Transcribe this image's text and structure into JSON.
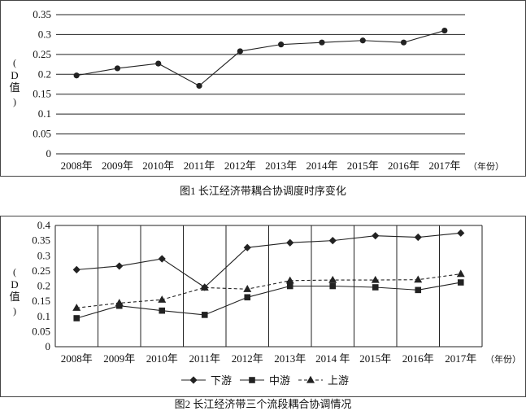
{
  "figures": [
    {
      "caption": "图1  长江经济带耦合协调度时序变化"
    },
    {
      "caption": "图2  长江经济带三个流段耦合协调情况"
    }
  ],
  "chart_data": [
    {
      "type": "line",
      "title": "",
      "xlabel": "（年份）",
      "ylabel": "D值",
      "categories": [
        "2008年",
        "2009年",
        "2010年",
        "2011年",
        "2012年",
        "2013年",
        "2014年",
        "2015年",
        "2016年",
        "2017年"
      ],
      "ylim": [
        0,
        0.35
      ],
      "yticks": [
        "0",
        "0.05",
        "0.1",
        "0.15",
        "0.2",
        "0.25",
        "0.3",
        "0.35"
      ],
      "grid": "horizontal",
      "legend": "none",
      "series": [
        {
          "values": [
            0.197,
            0.215,
            0.227,
            0.171,
            0.258,
            0.275,
            0.28,
            0.285,
            0.28,
            0.31
          ],
          "color": "#222222",
          "marker": "circle",
          "dash": "solid"
        }
      ]
    },
    {
      "type": "line",
      "title": "",
      "xlabel": "（年份）",
      "ylabel": "D值",
      "categories": [
        "2008年",
        "2009年",
        "2010年",
        "2011年",
        "2012年",
        "2013年",
        "2014 年",
        "2015年",
        "2016年",
        "2017年"
      ],
      "ylim": [
        0,
        0.4
      ],
      "yticks": [
        "0",
        "0.05",
        "0.1",
        "0.15",
        "0.2",
        "0.25",
        "0.3",
        "0.35",
        "0.4"
      ],
      "grid": "vertical",
      "legend": "bottom",
      "series": [
        {
          "name": "下游",
          "values": [
            0.254,
            0.266,
            0.29,
            0.196,
            0.327,
            0.343,
            0.35,
            0.366,
            0.361,
            0.375
          ],
          "color": "#222222",
          "marker": "diamond",
          "dash": "solid"
        },
        {
          "name": "中游",
          "values": [
            0.094,
            0.135,
            0.119,
            0.105,
            0.163,
            0.2,
            0.2,
            0.196,
            0.187,
            0.212
          ],
          "color": "#222222",
          "marker": "square",
          "dash": "solid"
        },
        {
          "name": "上游",
          "values": [
            0.128,
            0.144,
            0.155,
            0.195,
            0.19,
            0.218,
            0.22,
            0.22,
            0.221,
            0.24
          ],
          "color": "#222222",
          "marker": "triangle",
          "dash": "dashed"
        }
      ]
    }
  ]
}
